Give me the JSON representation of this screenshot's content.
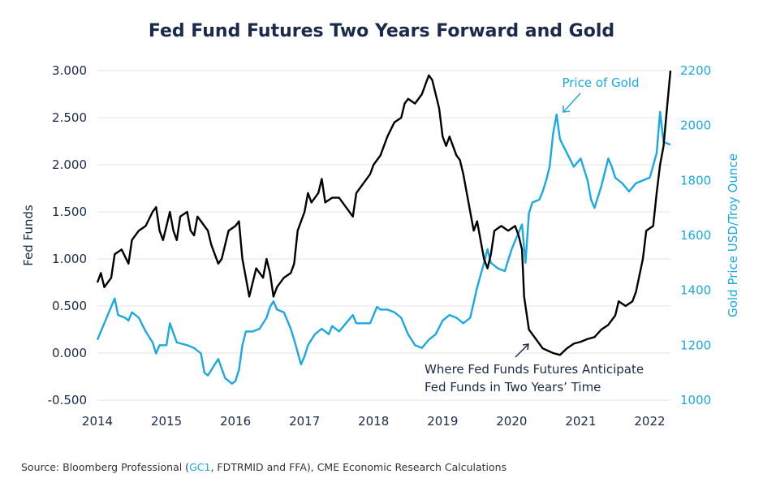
{
  "chart_data": {
    "type": "line",
    "title": "Fed Fund Futures Two Years Forward and Gold",
    "source": {
      "prefix": "Source: Bloomberg Professional (",
      "highlight": "GC1",
      "suffix": ", FDTRMID and FFA), CME Economic Research Calculations"
    },
    "xlabel": "",
    "ylabel_left": "Fed Funds",
    "ylabel_right": "Gold Price USD/Troy Ounce",
    "xlim": [
      2014,
      2022.3
    ],
    "ylim_left": [
      -0.5,
      3.0
    ],
    "ylim_right": [
      1000,
      2200
    ],
    "x_ticks": [
      "2014",
      "2015",
      "2016",
      "2017",
      "2018",
      "2019",
      "2020",
      "2021",
      "2022"
    ],
    "y_left_ticks": [
      "3.000",
      "2.500",
      "2.000",
      "1.500",
      "1.000",
      "0.500",
      "0.000",
      "-0.500"
    ],
    "y_right_ticks": [
      "2200",
      "2000",
      "1800",
      "1600",
      "1400",
      "1200",
      "1000"
    ],
    "grid": "horizontal",
    "colors": {
      "fed_funds": "#000000",
      "gold": "#1aa9e0",
      "title": "#1a2a4a"
    },
    "annotations": {
      "gold": "Price of Gold",
      "fed_line1": "Where Fed Funds Futures Anticipate",
      "fed_line2": "Fed Funds in Two Years’ Time"
    },
    "series": [
      {
        "key": "fed_funds",
        "axis": "left",
        "points": [
          [
            2014.0,
            0.75
          ],
          [
            2014.05,
            0.85
          ],
          [
            2014.1,
            0.7
          ],
          [
            2014.2,
            0.8
          ],
          [
            2014.25,
            1.05
          ],
          [
            2014.35,
            1.1
          ],
          [
            2014.45,
            0.95
          ],
          [
            2014.5,
            1.2
          ],
          [
            2014.6,
            1.3
          ],
          [
            2014.7,
            1.35
          ],
          [
            2014.8,
            1.5
          ],
          [
            2014.85,
            1.55
          ],
          [
            2014.9,
            1.3
          ],
          [
            2014.95,
            1.2
          ],
          [
            2015.0,
            1.35
          ],
          [
            2015.05,
            1.5
          ],
          [
            2015.1,
            1.3
          ],
          [
            2015.15,
            1.2
          ],
          [
            2015.2,
            1.45
          ],
          [
            2015.3,
            1.5
          ],
          [
            2015.35,
            1.3
          ],
          [
            2015.4,
            1.25
          ],
          [
            2015.45,
            1.45
          ],
          [
            2015.5,
            1.4
          ],
          [
            2015.6,
            1.3
          ],
          [
            2015.65,
            1.15
          ],
          [
            2015.75,
            0.95
          ],
          [
            2015.8,
            1.0
          ],
          [
            2015.9,
            1.3
          ],
          [
            2016.0,
            1.35
          ],
          [
            2016.05,
            1.4
          ],
          [
            2016.1,
            1.0
          ],
          [
            2016.15,
            0.8
          ],
          [
            2016.2,
            0.6
          ],
          [
            2016.3,
            0.9
          ],
          [
            2016.4,
            0.8
          ],
          [
            2016.45,
            1.0
          ],
          [
            2016.5,
            0.85
          ],
          [
            2016.55,
            0.6
          ],
          [
            2016.6,
            0.7
          ],
          [
            2016.7,
            0.8
          ],
          [
            2016.8,
            0.85
          ],
          [
            2016.85,
            0.95
          ],
          [
            2016.9,
            1.3
          ],
          [
            2017.0,
            1.5
          ],
          [
            2017.05,
            1.7
          ],
          [
            2017.1,
            1.6
          ],
          [
            2017.2,
            1.7
          ],
          [
            2017.25,
            1.85
          ],
          [
            2017.3,
            1.6
          ],
          [
            2017.4,
            1.65
          ],
          [
            2017.5,
            1.65
          ],
          [
            2017.6,
            1.55
          ],
          [
            2017.7,
            1.45
          ],
          [
            2017.75,
            1.7
          ],
          [
            2017.85,
            1.8
          ],
          [
            2017.95,
            1.9
          ],
          [
            2018.0,
            2.0
          ],
          [
            2018.1,
            2.1
          ],
          [
            2018.2,
            2.3
          ],
          [
            2018.3,
            2.45
          ],
          [
            2018.4,
            2.5
          ],
          [
            2018.45,
            2.65
          ],
          [
            2018.5,
            2.7
          ],
          [
            2018.6,
            2.65
          ],
          [
            2018.7,
            2.75
          ],
          [
            2018.75,
            2.85
          ],
          [
            2018.8,
            2.95
          ],
          [
            2018.85,
            2.9
          ],
          [
            2018.95,
            2.6
          ],
          [
            2019.0,
            2.3
          ],
          [
            2019.05,
            2.2
          ],
          [
            2019.1,
            2.3
          ],
          [
            2019.2,
            2.1
          ],
          [
            2019.25,
            2.05
          ],
          [
            2019.3,
            1.9
          ],
          [
            2019.4,
            1.5
          ],
          [
            2019.45,
            1.3
          ],
          [
            2019.5,
            1.4
          ],
          [
            2019.6,
            1.0
          ],
          [
            2019.65,
            0.9
          ],
          [
            2019.7,
            1.05
          ],
          [
            2019.75,
            1.3
          ],
          [
            2019.85,
            1.35
          ],
          [
            2019.95,
            1.3
          ],
          [
            2020.05,
            1.35
          ],
          [
            2020.1,
            1.25
          ],
          [
            2020.15,
            1.1
          ],
          [
            2020.18,
            0.6
          ],
          [
            2020.25,
            0.25
          ],
          [
            2020.35,
            0.15
          ],
          [
            2020.45,
            0.05
          ],
          [
            2020.6,
            0.0
          ],
          [
            2020.7,
            -0.02
          ],
          [
            2020.8,
            0.05
          ],
          [
            2020.9,
            0.1
          ],
          [
            2021.0,
            0.12
          ],
          [
            2021.1,
            0.15
          ],
          [
            2021.2,
            0.17
          ],
          [
            2021.3,
            0.25
          ],
          [
            2021.4,
            0.3
          ],
          [
            2021.5,
            0.4
          ],
          [
            2021.55,
            0.55
          ],
          [
            2021.65,
            0.5
          ],
          [
            2021.75,
            0.55
          ],
          [
            2021.8,
            0.65
          ],
          [
            2021.9,
            1.0
          ],
          [
            2021.95,
            1.3
          ],
          [
            2022.05,
            1.35
          ],
          [
            2022.1,
            1.7
          ],
          [
            2022.15,
            2.0
          ],
          [
            2022.2,
            2.2
          ],
          [
            2022.25,
            2.6
          ],
          [
            2022.3,
            3.0
          ]
        ]
      },
      {
        "key": "gold",
        "axis": "right",
        "points": [
          [
            2014.0,
            1220
          ],
          [
            2014.05,
            1250
          ],
          [
            2014.1,
            1280
          ],
          [
            2014.2,
            1340
          ],
          [
            2014.25,
            1370
          ],
          [
            2014.3,
            1310
          ],
          [
            2014.4,
            1300
          ],
          [
            2014.45,
            1290
          ],
          [
            2014.5,
            1320
          ],
          [
            2014.55,
            1310
          ],
          [
            2014.6,
            1300
          ],
          [
            2014.7,
            1250
          ],
          [
            2014.8,
            1210
          ],
          [
            2014.85,
            1170
          ],
          [
            2014.9,
            1200
          ],
          [
            2015.0,
            1200
          ],
          [
            2015.05,
            1280
          ],
          [
            2015.15,
            1210
          ],
          [
            2015.3,
            1200
          ],
          [
            2015.4,
            1190
          ],
          [
            2015.5,
            1170
          ],
          [
            2015.55,
            1100
          ],
          [
            2015.6,
            1090
          ],
          [
            2015.7,
            1130
          ],
          [
            2015.75,
            1150
          ],
          [
            2015.85,
            1080
          ],
          [
            2015.9,
            1070
          ],
          [
            2015.95,
            1060
          ],
          [
            2016.0,
            1070
          ],
          [
            2016.05,
            1110
          ],
          [
            2016.1,
            1200
          ],
          [
            2016.15,
            1250
          ],
          [
            2016.25,
            1250
          ],
          [
            2016.35,
            1260
          ],
          [
            2016.4,
            1280
          ],
          [
            2016.45,
            1300
          ],
          [
            2016.5,
            1340
          ],
          [
            2016.55,
            1360
          ],
          [
            2016.6,
            1330
          ],
          [
            2016.7,
            1320
          ],
          [
            2016.8,
            1260
          ],
          [
            2016.85,
            1220
          ],
          [
            2016.95,
            1130
          ],
          [
            2017.0,
            1160
          ],
          [
            2017.05,
            1200
          ],
          [
            2017.15,
            1240
          ],
          [
            2017.25,
            1260
          ],
          [
            2017.35,
            1240
          ],
          [
            2017.4,
            1270
          ],
          [
            2017.5,
            1250
          ],
          [
            2017.6,
            1280
          ],
          [
            2017.7,
            1310
          ],
          [
            2017.75,
            1280
          ],
          [
            2017.85,
            1280
          ],
          [
            2017.95,
            1280
          ],
          [
            2018.05,
            1340
          ],
          [
            2018.1,
            1330
          ],
          [
            2018.2,
            1330
          ],
          [
            2018.3,
            1320
          ],
          [
            2018.4,
            1300
          ],
          [
            2018.45,
            1270
          ],
          [
            2018.5,
            1240
          ],
          [
            2018.6,
            1200
          ],
          [
            2018.7,
            1190
          ],
          [
            2018.8,
            1220
          ],
          [
            2018.9,
            1240
          ],
          [
            2019.0,
            1290
          ],
          [
            2019.1,
            1310
          ],
          [
            2019.2,
            1300
          ],
          [
            2019.3,
            1280
          ],
          [
            2019.4,
            1300
          ],
          [
            2019.5,
            1410
          ],
          [
            2019.6,
            1500
          ],
          [
            2019.65,
            1550
          ],
          [
            2019.7,
            1500
          ],
          [
            2019.8,
            1480
          ],
          [
            2019.9,
            1470
          ],
          [
            2020.0,
            1550
          ],
          [
            2020.05,
            1580
          ],
          [
            2020.15,
            1640
          ],
          [
            2020.2,
            1500
          ],
          [
            2020.25,
            1680
          ],
          [
            2020.3,
            1720
          ],
          [
            2020.4,
            1730
          ],
          [
            2020.45,
            1760
          ],
          [
            2020.5,
            1800
          ],
          [
            2020.55,
            1850
          ],
          [
            2020.6,
            1970
          ],
          [
            2020.65,
            2040
          ],
          [
            2020.7,
            1950
          ],
          [
            2020.8,
            1900
          ],
          [
            2020.9,
            1850
          ],
          [
            2021.0,
            1880
          ],
          [
            2021.1,
            1800
          ],
          [
            2021.15,
            1730
          ],
          [
            2021.2,
            1700
          ],
          [
            2021.3,
            1780
          ],
          [
            2021.4,
            1880
          ],
          [
            2021.45,
            1850
          ],
          [
            2021.5,
            1810
          ],
          [
            2021.6,
            1790
          ],
          [
            2021.7,
            1760
          ],
          [
            2021.8,
            1790
          ],
          [
            2021.9,
            1800
          ],
          [
            2022.0,
            1810
          ],
          [
            2022.1,
            1900
          ],
          [
            2022.15,
            2050
          ],
          [
            2022.2,
            1940
          ],
          [
            2022.3,
            1930
          ]
        ]
      }
    ]
  }
}
